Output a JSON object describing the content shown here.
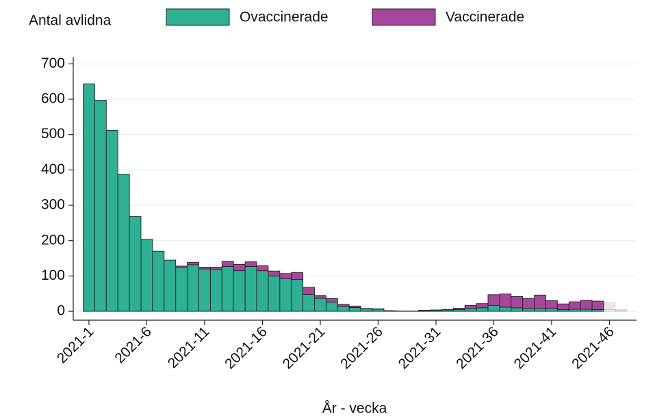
{
  "chart_data": {
    "type": "stacked_bar",
    "y_axis_label": "Antal avlidna",
    "x_axis_label": "År - vecka",
    "categories": [
      "2021-1",
      null,
      null,
      null,
      null,
      "2021-6",
      null,
      null,
      null,
      null,
      "2021-11",
      null,
      null,
      null,
      null,
      "2021-16",
      null,
      null,
      null,
      null,
      "2021-21",
      null,
      null,
      null,
      null,
      "2021-26",
      null,
      null,
      null,
      null,
      "2021-31",
      null,
      null,
      null,
      null,
      "2021-36",
      null,
      null,
      null,
      null,
      "2021-41",
      null,
      null,
      null,
      null,
      "2021-46",
      null
    ],
    "series": [
      {
        "name": "Ovaccinerade",
        "color": "#2fb094",
        "values": [
          643,
          597,
          512,
          388,
          268,
          204,
          170,
          145,
          125,
          132,
          120,
          118,
          127,
          115,
          127,
          115,
          100,
          92,
          90,
          48,
          37,
          26,
          14,
          11,
          7,
          6,
          2,
          1,
          1,
          2,
          3,
          4,
          5,
          8,
          10,
          17,
          12,
          10,
          8,
          8,
          8,
          5,
          6,
          6,
          5,
          5,
          3
        ]
      },
      {
        "name": "Vaccinerade",
        "color": "#a7479c",
        "values": [
          0,
          0,
          0,
          0,
          0,
          0,
          0,
          0,
          3,
          7,
          5,
          7,
          14,
          18,
          13,
          14,
          14,
          15,
          20,
          20,
          8,
          10,
          6,
          4,
          1,
          1,
          0,
          0,
          0,
          1,
          1,
          1,
          4,
          9,
          12,
          30,
          37,
          32,
          28,
          38,
          22,
          16,
          21,
          25,
          24,
          20,
          2
        ]
      }
    ],
    "faded_from_index": 45,
    "ylim": [
      -25,
      720
    ],
    "yticks": [
      0,
      100,
      200,
      300,
      400,
      500,
      600,
      700
    ],
    "grid": true
  }
}
